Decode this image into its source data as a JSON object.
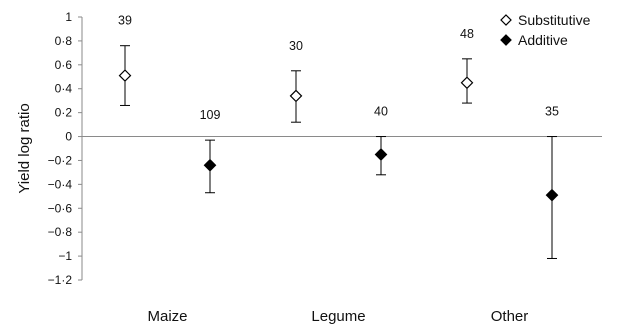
{
  "chart_data": {
    "type": "scatter",
    "ylabel": "Yield log ratio",
    "ylim": [
      -1.2,
      1
    ],
    "yticks": [
      {
        "value": 1,
        "label": "1"
      },
      {
        "value": 0.8,
        "label": "0·8"
      },
      {
        "value": 0.6,
        "label": "0·6"
      },
      {
        "value": 0.4,
        "label": "0·4"
      },
      {
        "value": 0.2,
        "label": "0·2"
      },
      {
        "value": 0,
        "label": "0"
      },
      {
        "value": -0.2,
        "label": "−0·2"
      },
      {
        "value": -0.4,
        "label": "−0·4"
      },
      {
        "value": -0.6,
        "label": "−0·6"
      },
      {
        "value": -0.8,
        "label": "−0·8"
      },
      {
        "value": -1,
        "label": "−1"
      },
      {
        "value": -1.2,
        "label": "−1·2"
      }
    ],
    "categories": [
      "Maize",
      "Legume",
      "Other"
    ],
    "zero_line": true,
    "grid": false,
    "legend_position": "top-right",
    "series": [
      {
        "name": "Substitutive",
        "marker": "open-diamond",
        "color": "#000000",
        "points": [
          {
            "category": "Maize",
            "y": 0.51,
            "ci": [
              0.26,
              0.76
            ],
            "n": "39"
          },
          {
            "category": "Legume",
            "y": 0.34,
            "ci": [
              0.12,
              0.55
            ],
            "n": "30"
          },
          {
            "category": "Other",
            "y": 0.45,
            "ci": [
              0.28,
              0.65
            ],
            "n": "48"
          }
        ]
      },
      {
        "name": "Additive",
        "marker": "filled-diamond",
        "color": "#000000",
        "points": [
          {
            "category": "Maize",
            "y": -0.24,
            "ci": [
              -0.47,
              -0.03
            ],
            "n": "109"
          },
          {
            "category": "Legume",
            "y": -0.15,
            "ci": [
              -0.32,
              0.0
            ],
            "n": "40"
          },
          {
            "category": "Other",
            "y": -0.49,
            "ci": [
              -1.02,
              0.0
            ],
            "n": "35"
          }
        ]
      }
    ]
  }
}
